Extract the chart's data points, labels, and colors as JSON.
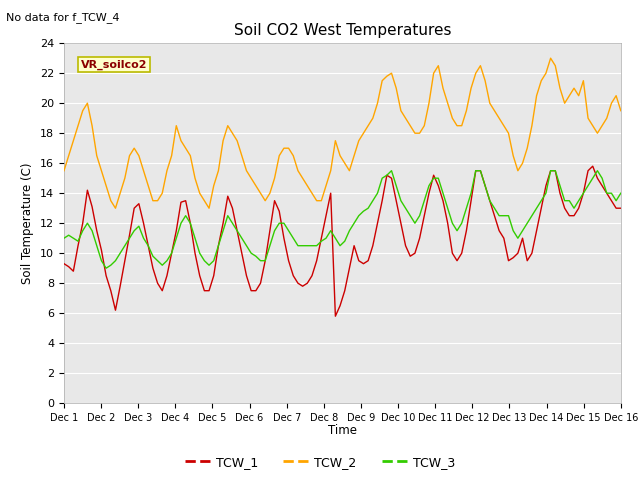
{
  "title": "Soil CO2 West Temperatures",
  "no_data_text": "No data for f_TCW_4",
  "ylabel": "Soil Temperature (C)",
  "xlabel": "Time",
  "vr_label": "VR_soilco2",
  "ylim": [
    0,
    24
  ],
  "bg_color": "#e8e8e8",
  "fig_color": "#ffffff",
  "grid_color": "#ffffff",
  "line_colors": {
    "TCW_1": "#cc0000",
    "TCW_2": "#ffa500",
    "TCW_3": "#33cc00"
  },
  "xtick_labels": [
    "Dec 1",
    "Dec 2",
    "Dec 3",
    "Dec 4",
    "Dec 5",
    "Dec 6",
    "Dec 7",
    "Dec 8",
    "Dec 9",
    "Dec 10",
    "Dec 11",
    "Dec 12",
    "Dec 13",
    "Dec 14",
    "Dec 15",
    "Dec 16"
  ],
  "ytick_labels": [
    "0",
    "2",
    "4",
    "6",
    "8",
    "10",
    "12",
    "14",
    "16",
    "18",
    "20",
    "22",
    "24"
  ],
  "ytick_vals": [
    0,
    2,
    4,
    6,
    8,
    10,
    12,
    14,
    16,
    18,
    20,
    22,
    24
  ],
  "TCW_1": [
    9.3,
    9.1,
    8.8,
    10.5,
    12.0,
    14.2,
    13.1,
    11.5,
    10.2,
    8.5,
    7.5,
    6.2,
    7.8,
    9.5,
    11.2,
    13.0,
    13.3,
    12.0,
    10.5,
    9.0,
    8.0,
    7.5,
    8.5,
    10.0,
    11.5,
    13.4,
    13.5,
    12.0,
    10.0,
    8.5,
    7.5,
    7.5,
    8.5,
    10.5,
    12.0,
    13.8,
    13.0,
    11.5,
    10.0,
    8.5,
    7.5,
    7.5,
    8.0,
    9.5,
    11.5,
    13.5,
    12.8,
    11.0,
    9.5,
    8.5,
    8.0,
    7.8,
    8.0,
    8.5,
    9.5,
    11.0,
    12.5,
    14.0,
    5.8,
    6.5,
    7.5,
    9.0,
    10.5,
    9.5,
    9.3,
    9.5,
    10.5,
    12.0,
    13.5,
    15.2,
    15.0,
    13.5,
    12.0,
    10.5,
    9.8,
    10.0,
    11.0,
    12.5,
    14.0,
    15.2,
    14.5,
    13.5,
    12.0,
    10.0,
    9.5,
    10.0,
    11.5,
    13.5,
    15.5,
    15.5,
    14.5,
    13.5,
    12.5,
    11.5,
    11.0,
    9.5,
    9.7,
    10.0,
    11.0,
    9.5,
    10.0,
    11.5,
    13.0,
    14.5,
    15.5,
    15.5,
    14.0,
    13.0,
    12.5,
    12.5,
    13.0,
    14.0,
    15.5,
    15.8,
    15.0,
    14.5,
    14.0,
    13.5,
    13.0,
    13.0
  ],
  "TCW_2": [
    15.5,
    16.5,
    17.5,
    18.5,
    19.5,
    20.0,
    18.5,
    16.5,
    15.5,
    14.5,
    13.5,
    13.0,
    14.0,
    15.0,
    16.5,
    17.0,
    16.5,
    15.5,
    14.5,
    13.5,
    13.5,
    14.0,
    15.5,
    16.5,
    18.5,
    17.5,
    17.0,
    16.5,
    15.0,
    14.0,
    13.5,
    13.0,
    14.5,
    15.5,
    17.5,
    18.5,
    18.0,
    17.5,
    16.5,
    15.5,
    15.0,
    14.5,
    14.0,
    13.5,
    14.0,
    15.0,
    16.5,
    17.0,
    17.0,
    16.5,
    15.5,
    15.0,
    14.5,
    14.0,
    13.5,
    13.5,
    14.5,
    15.5,
    17.5,
    16.5,
    16.0,
    15.5,
    16.5,
    17.5,
    18.0,
    18.5,
    19.0,
    20.0,
    21.5,
    21.8,
    22.0,
    21.0,
    19.5,
    19.0,
    18.5,
    18.0,
    18.0,
    18.5,
    20.0,
    22.0,
    22.5,
    21.0,
    20.0,
    19.0,
    18.5,
    18.5,
    19.5,
    21.0,
    22.0,
    22.5,
    21.5,
    20.0,
    19.5,
    19.0,
    18.5,
    18.0,
    16.5,
    15.5,
    16.0,
    17.0,
    18.5,
    20.5,
    21.5,
    22.0,
    23.0,
    22.5,
    21.0,
    20.0,
    20.5,
    21.0,
    20.5,
    21.5,
    19.0,
    18.5,
    18.0,
    18.5,
    19.0,
    20.0,
    20.5,
    19.5
  ],
  "TCW_3": [
    11.0,
    11.2,
    11.0,
    10.8,
    11.5,
    12.0,
    11.5,
    10.5,
    9.5,
    9.0,
    9.2,
    9.5,
    10.0,
    10.5,
    11.0,
    11.5,
    11.8,
    11.0,
    10.5,
    9.8,
    9.5,
    9.2,
    9.5,
    10.0,
    11.0,
    12.0,
    12.5,
    12.0,
    11.0,
    10.0,
    9.5,
    9.2,
    9.5,
    10.5,
    11.5,
    12.5,
    12.0,
    11.5,
    11.0,
    10.5,
    10.0,
    9.8,
    9.5,
    9.5,
    10.5,
    11.5,
    12.0,
    12.0,
    11.5,
    11.0,
    10.5,
    10.5,
    10.5,
    10.5,
    10.5,
    10.8,
    11.0,
    11.5,
    11.0,
    10.5,
    10.8,
    11.5,
    12.0,
    12.5,
    12.8,
    13.0,
    13.5,
    14.0,
    15.0,
    15.2,
    15.5,
    14.5,
    13.5,
    13.0,
    12.5,
    12.0,
    12.5,
    13.5,
    14.5,
    15.0,
    15.0,
    14.0,
    13.0,
    12.0,
    11.5,
    12.0,
    13.0,
    14.0,
    15.5,
    15.5,
    14.5,
    13.5,
    13.0,
    12.5,
    12.5,
    12.5,
    11.5,
    11.0,
    11.5,
    12.0,
    12.5,
    13.0,
    13.5,
    14.0,
    15.5,
    15.5,
    14.5,
    13.5,
    13.5,
    13.0,
    13.5,
    14.0,
    14.5,
    15.0,
    15.5,
    15.0,
    14.0,
    14.0,
    13.5,
    14.0
  ]
}
